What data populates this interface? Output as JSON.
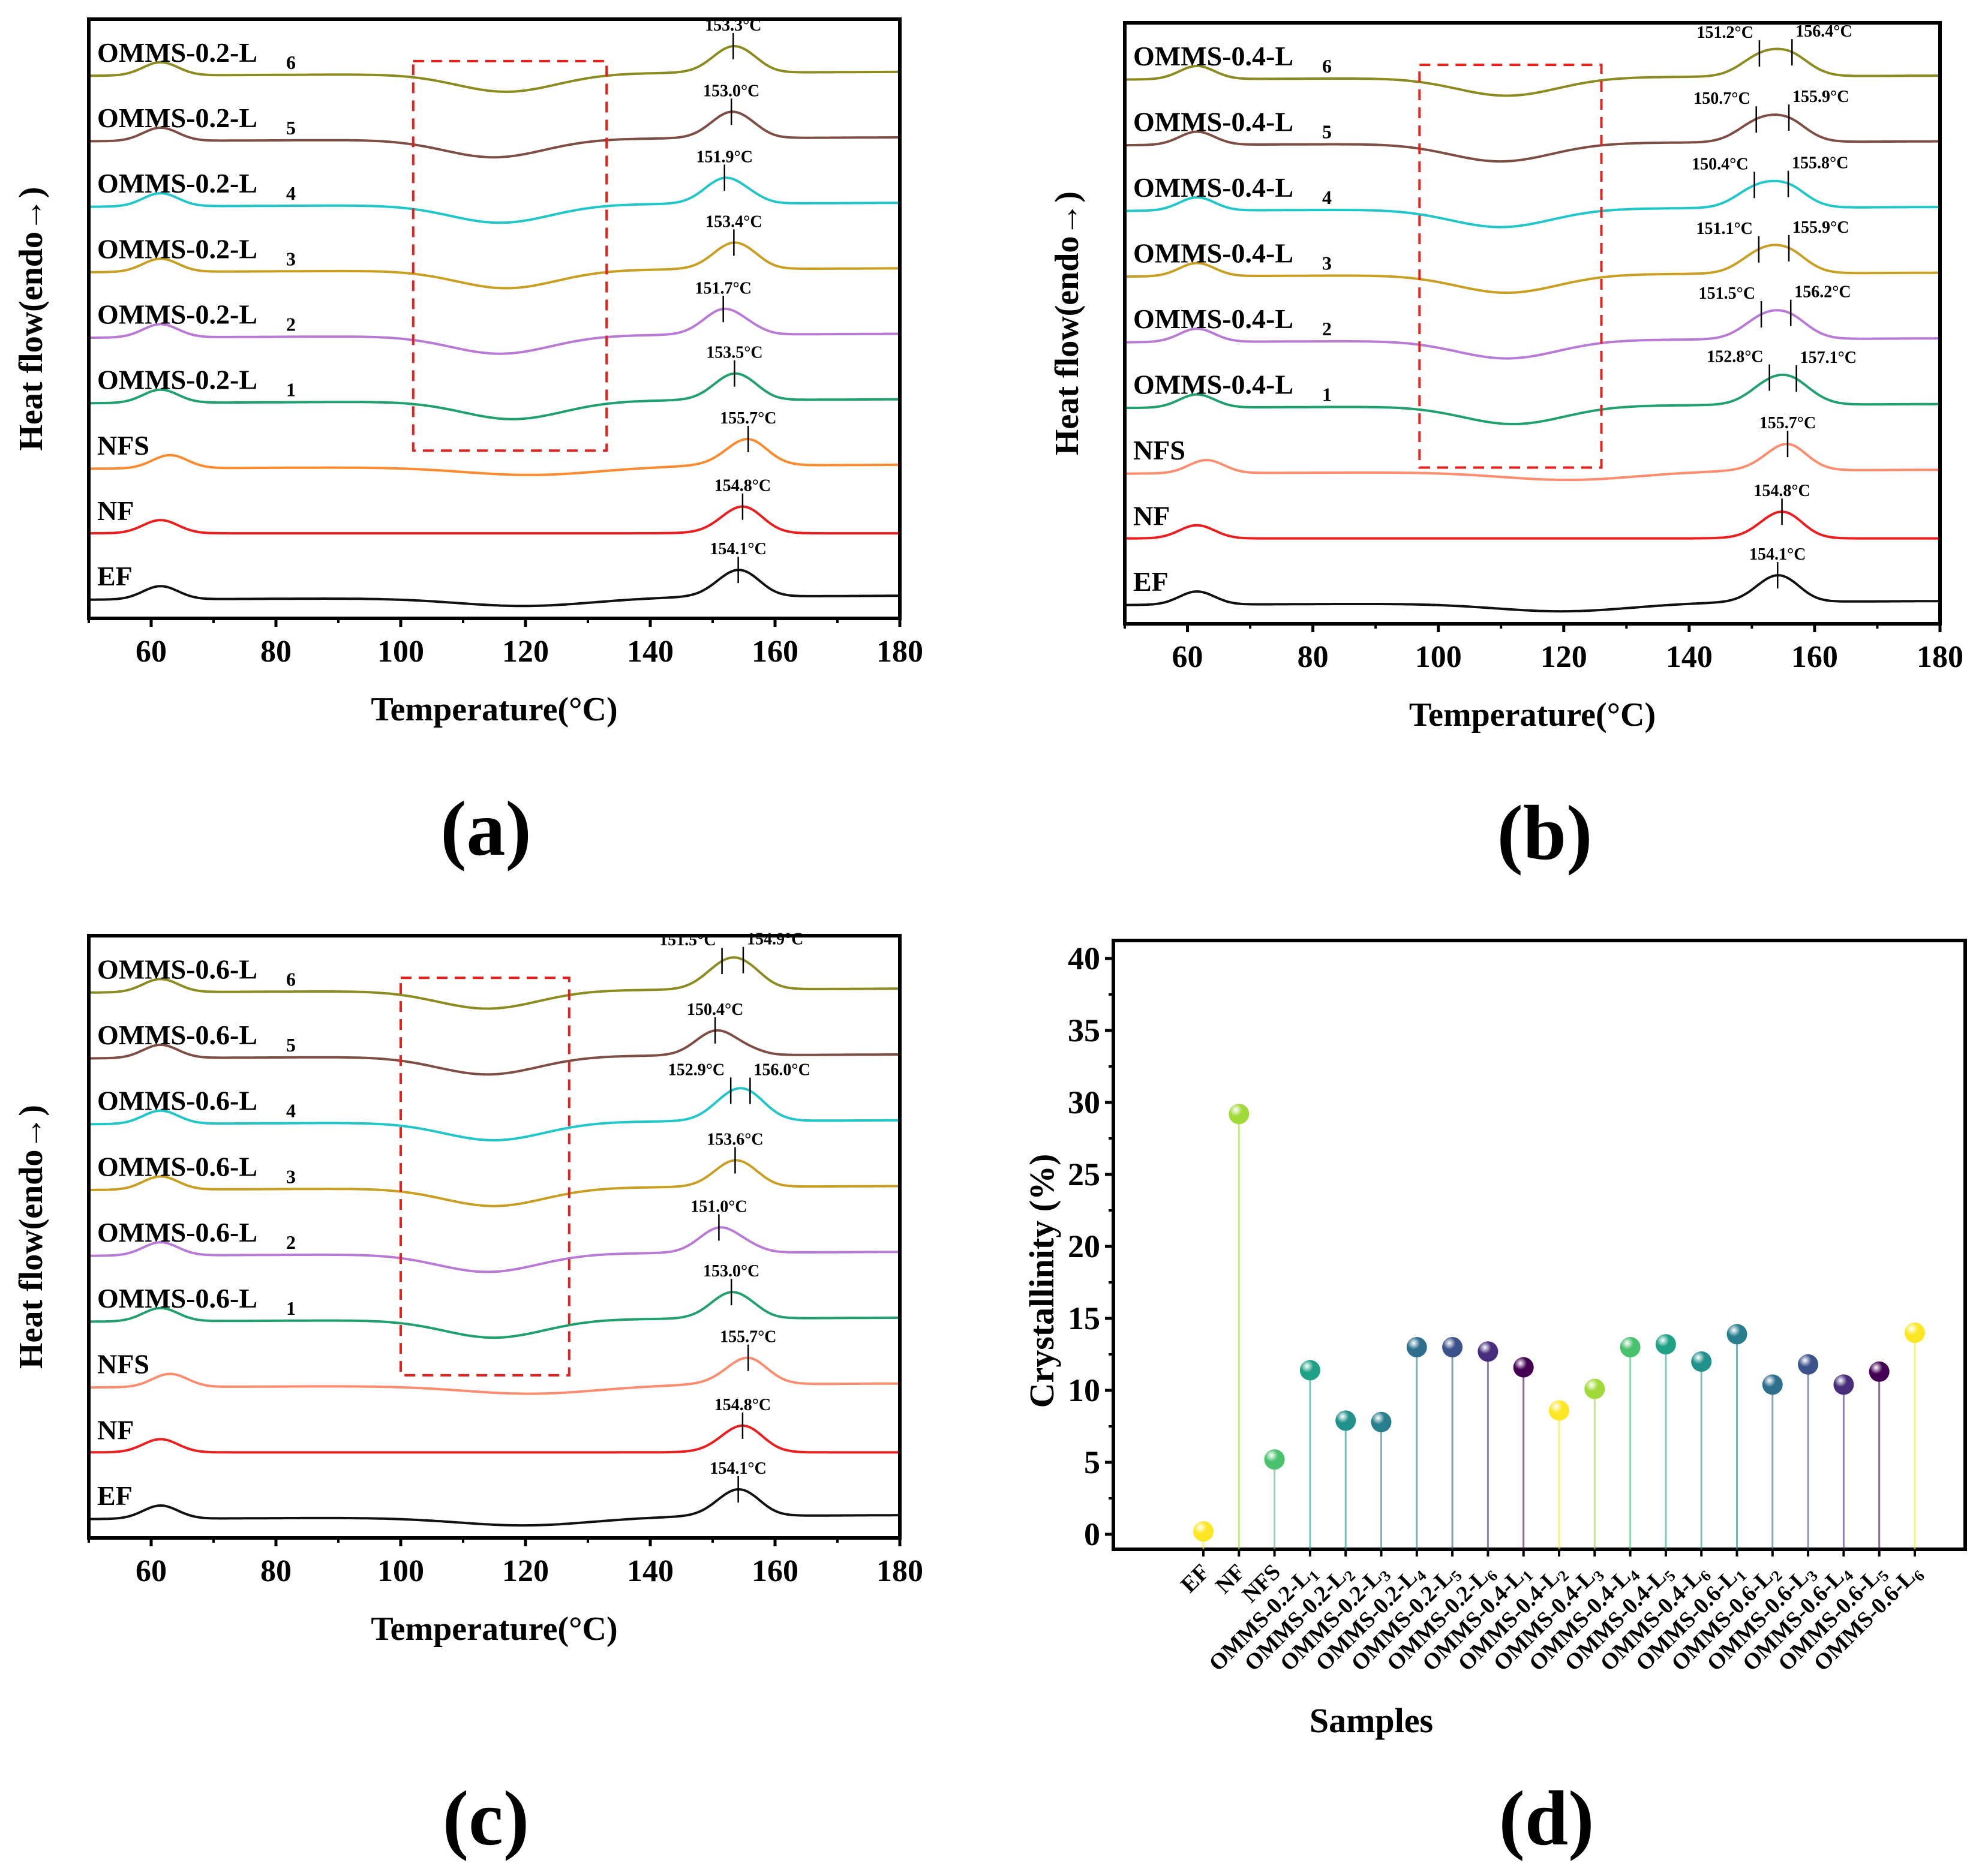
{
  "chart_data": [
    {
      "type": "line",
      "panel_label": "(a)",
      "xlabel": "Temperature(°C)",
      "ylabel": "Heat flow(endo→)",
      "xlim": [
        50,
        180
      ],
      "xticks": [
        "60",
        "80",
        "100",
        "120",
        "140",
        "160",
        "180"
      ],
      "highlight_box_temperature_range": [
        102,
        133
      ],
      "series": [
        {
          "name": "OMMS-0.2-L",
          "sub": "6",
          "color": "#8b8b1f",
          "dip": 117,
          "peaks": [
            {
              "t": 153.3,
              "label": "153.3°C"
            }
          ]
        },
        {
          "name": "OMMS-0.2-L",
          "sub": "5",
          "color": "#7e4e44",
          "dip": 115,
          "peaks": [
            {
              "t": 153.0,
              "label": "153.0°C"
            }
          ]
        },
        {
          "name": "OMMS-0.2-L",
          "sub": "4",
          "color": "#1fc7c9",
          "dip": 116,
          "peaks": [
            {
              "t": 151.9,
              "label": "151.9°C"
            }
          ]
        },
        {
          "name": "OMMS-0.2-L",
          "sub": "3",
          "color": "#c99f22",
          "dip": 117,
          "peaks": [
            {
              "t": 153.4,
              "label": "153.4°C"
            }
          ]
        },
        {
          "name": "OMMS-0.2-L",
          "sub": "2",
          "color": "#b97ad6",
          "dip": 116,
          "peaks": [
            {
              "t": 151.7,
              "label": "151.7°C"
            }
          ]
        },
        {
          "name": "OMMS-0.2-L",
          "sub": "1",
          "color": "#1fa06e",
          "dip": 118,
          "peaks": [
            {
              "t": 153.5,
              "label": "153.5°C"
            }
          ]
        },
        {
          "name": "NFS",
          "sub": "",
          "color": "#ff8a2e",
          "dip": 121,
          "peaks": [
            {
              "t": 155.7,
              "label": "155.7°C"
            }
          ]
        },
        {
          "name": "NF",
          "sub": "",
          "color": "#ee1c1c",
          "dip": 0,
          "peaks": [
            {
              "t": 154.8,
              "label": "154.8°C"
            }
          ]
        },
        {
          "name": "EF",
          "sub": "",
          "color": "#111111",
          "dip": 120,
          "peaks": [
            {
              "t": 154.1,
              "label": "154.1°C"
            }
          ]
        }
      ]
    },
    {
      "type": "line",
      "panel_label": "(b)",
      "xlabel": "Temperature(°C)",
      "ylabel": "Heat flow(endo→)",
      "xlim": [
        50,
        180
      ],
      "xticks": [
        "60",
        "80",
        "100",
        "120",
        "140",
        "160",
        "180"
      ],
      "highlight_box_temperature_range": [
        97,
        126
      ],
      "series": [
        {
          "name": "OMMS-0.4-L",
          "sub": "6",
          "color": "#8b8b1f",
          "dip": 111,
          "peaks": [
            {
              "t": 151.2,
              "label": "151.2°C"
            },
            {
              "t": 156.4,
              "label": "156.4°C"
            }
          ]
        },
        {
          "name": "OMMS-0.4-L",
          "sub": "5",
          "color": "#7e4e44",
          "dip": 110,
          "peaks": [
            {
              "t": 150.7,
              "label": "150.7°C"
            },
            {
              "t": 155.9,
              "label": "155.9°C"
            }
          ]
        },
        {
          "name": "OMMS-0.4-L",
          "sub": "4",
          "color": "#1fc7c9",
          "dip": 110,
          "peaks": [
            {
              "t": 150.4,
              "label": "150.4°C"
            },
            {
              "t": 155.8,
              "label": "155.8°C"
            }
          ]
        },
        {
          "name": "OMMS-0.4-L",
          "sub": "3",
          "color": "#c99f22",
          "dip": 111,
          "peaks": [
            {
              "t": 151.1,
              "label": "151.1°C"
            },
            {
              "t": 155.9,
              "label": "155.9°C"
            }
          ]
        },
        {
          "name": "OMMS-0.4-L",
          "sub": "2",
          "color": "#b97ad6",
          "dip": 111,
          "peaks": [
            {
              "t": 151.5,
              "label": "151.5°C"
            },
            {
              "t": 156.2,
              "label": "156.2°C"
            }
          ]
        },
        {
          "name": "OMMS-0.4-L",
          "sub": "1",
          "color": "#1fa06e",
          "dip": 112,
          "peaks": [
            {
              "t": 152.8,
              "label": "152.8°C"
            },
            {
              "t": 157.1,
              "label": "157.1°C"
            }
          ]
        },
        {
          "name": "NFS",
          "sub": "",
          "color": "#ff8c6e",
          "dip": 121,
          "peaks": [
            {
              "t": 155.7,
              "label": "155.7°C"
            }
          ]
        },
        {
          "name": "NF",
          "sub": "",
          "color": "#ee1c1c",
          "dip": 0,
          "peaks": [
            {
              "t": 154.8,
              "label": "154.8°C"
            }
          ]
        },
        {
          "name": "EF",
          "sub": "",
          "color": "#111111",
          "dip": 120,
          "peaks": [
            {
              "t": 154.1,
              "label": "154.1°C"
            }
          ]
        }
      ]
    },
    {
      "type": "line",
      "panel_label": "(c)",
      "xlabel": "Temperature(°C)",
      "ylabel": "Heat flow(endo→)",
      "xlim": [
        50,
        180
      ],
      "xticks": [
        "60",
        "80",
        "100",
        "120",
        "140",
        "160",
        "180"
      ],
      "highlight_box_temperature_range": [
        100,
        127
      ],
      "series": [
        {
          "name": "OMMS-0.6-L",
          "sub": "6",
          "color": "#8b8b1f",
          "dip": 114,
          "peaks": [
            {
              "t": 151.5,
              "label": "151.5°C"
            },
            {
              "t": 154.9,
              "label": "154.9°C"
            }
          ]
        },
        {
          "name": "OMMS-0.6-L",
          "sub": "5",
          "color": "#7e4e44",
          "dip": 114,
          "peaks": [
            {
              "t": 150.4,
              "label": "150.4°C"
            }
          ]
        },
        {
          "name": "OMMS-0.6-L",
          "sub": "4",
          "color": "#1fc7c9",
          "dip": 115,
          "peaks": [
            {
              "t": 152.9,
              "label": "152.9°C"
            },
            {
              "t": 156.0,
              "label": "156.0°C"
            }
          ]
        },
        {
          "name": "OMMS-0.6-L",
          "sub": "3",
          "color": "#c99f22",
          "dip": 115,
          "peaks": [
            {
              "t": 153.6,
              "label": "153.6°C"
            }
          ]
        },
        {
          "name": "OMMS-0.6-L",
          "sub": "2",
          "color": "#b97ad6",
          "dip": 114,
          "peaks": [
            {
              "t": 151.0,
              "label": "151.0°C"
            }
          ]
        },
        {
          "name": "OMMS-0.6-L",
          "sub": "1",
          "color": "#1fa06e",
          "dip": 115,
          "peaks": [
            {
              "t": 153.0,
              "label": "153.0°C"
            }
          ]
        },
        {
          "name": "NFS",
          "sub": "",
          "color": "#ff8c6e",
          "dip": 121,
          "peaks": [
            {
              "t": 155.7,
              "label": "155.7°C"
            }
          ]
        },
        {
          "name": "NF",
          "sub": "",
          "color": "#ee1c1c",
          "dip": 0,
          "peaks": [
            {
              "t": 154.8,
              "label": "154.8°C"
            }
          ]
        },
        {
          "name": "EF",
          "sub": "",
          "color": "#111111",
          "dip": 120,
          "peaks": [
            {
              "t": 154.1,
              "label": "154.1°C"
            }
          ]
        }
      ]
    },
    {
      "type": "scatter",
      "panel_label": "(d)",
      "xlabel": "Samples",
      "ylabel": "Crystallinity (%)",
      "ylim": [
        0,
        40
      ],
      "yticks": [
        "0",
        "5",
        "10",
        "15",
        "20",
        "25",
        "30",
        "35",
        "40"
      ],
      "categories": [
        {
          "name": "EF",
          "sub": ""
        },
        {
          "name": "NF",
          "sub": ""
        },
        {
          "name": "NFS",
          "sub": ""
        },
        {
          "name": "OMMS-0.2-L",
          "sub": "1"
        },
        {
          "name": "OMMS-0.2-L",
          "sub": "2"
        },
        {
          "name": "OMMS-0.2-L",
          "sub": "3"
        },
        {
          "name": "OMMS-0.2-L",
          "sub": "4"
        },
        {
          "name": "OMMS-0.2-L",
          "sub": "5"
        },
        {
          "name": "OMMS-0.2-L",
          "sub": "6"
        },
        {
          "name": "OMMS-0.4-L",
          "sub": "1"
        },
        {
          "name": "OMMS-0.4-L",
          "sub": "2"
        },
        {
          "name": "OMMS-0.4-L",
          "sub": "3"
        },
        {
          "name": "OMMS-0.4-L",
          "sub": "4"
        },
        {
          "name": "OMMS-0.4-L",
          "sub": "5"
        },
        {
          "name": "OMMS-0.4-L",
          "sub": "6"
        },
        {
          "name": "OMMS-0.6-L",
          "sub": "1"
        },
        {
          "name": "OMMS-0.6-L",
          "sub": "2"
        },
        {
          "name": "OMMS-0.6-L",
          "sub": "3"
        },
        {
          "name": "OMMS-0.6-L",
          "sub": "4"
        },
        {
          "name": "OMMS-0.6-L",
          "sub": "5"
        },
        {
          "name": "OMMS-0.6-L",
          "sub": "6"
        }
      ],
      "values": [
        0.2,
        29.2,
        5.2,
        11.4,
        7.9,
        7.8,
        13.0,
        13.0,
        12.7,
        11.6,
        8.6,
        10.1,
        13.0,
        13.2,
        12.0,
        13.9,
        10.4,
        11.8,
        10.4,
        11.3,
        14.0
      ],
      "colors": [
        "#fde725",
        "#a0da39",
        "#4ac16d",
        "#1fa187",
        "#21918c",
        "#277f8e",
        "#2e6f8e",
        "#3b528b",
        "#472d7b",
        "#440154",
        "#fde725",
        "#a0da39",
        "#4ac16d",
        "#1fa187",
        "#21918c",
        "#277f8e",
        "#2e6f8e",
        "#3b528b",
        "#472d7b",
        "#440154",
        "#fde725"
      ]
    }
  ]
}
